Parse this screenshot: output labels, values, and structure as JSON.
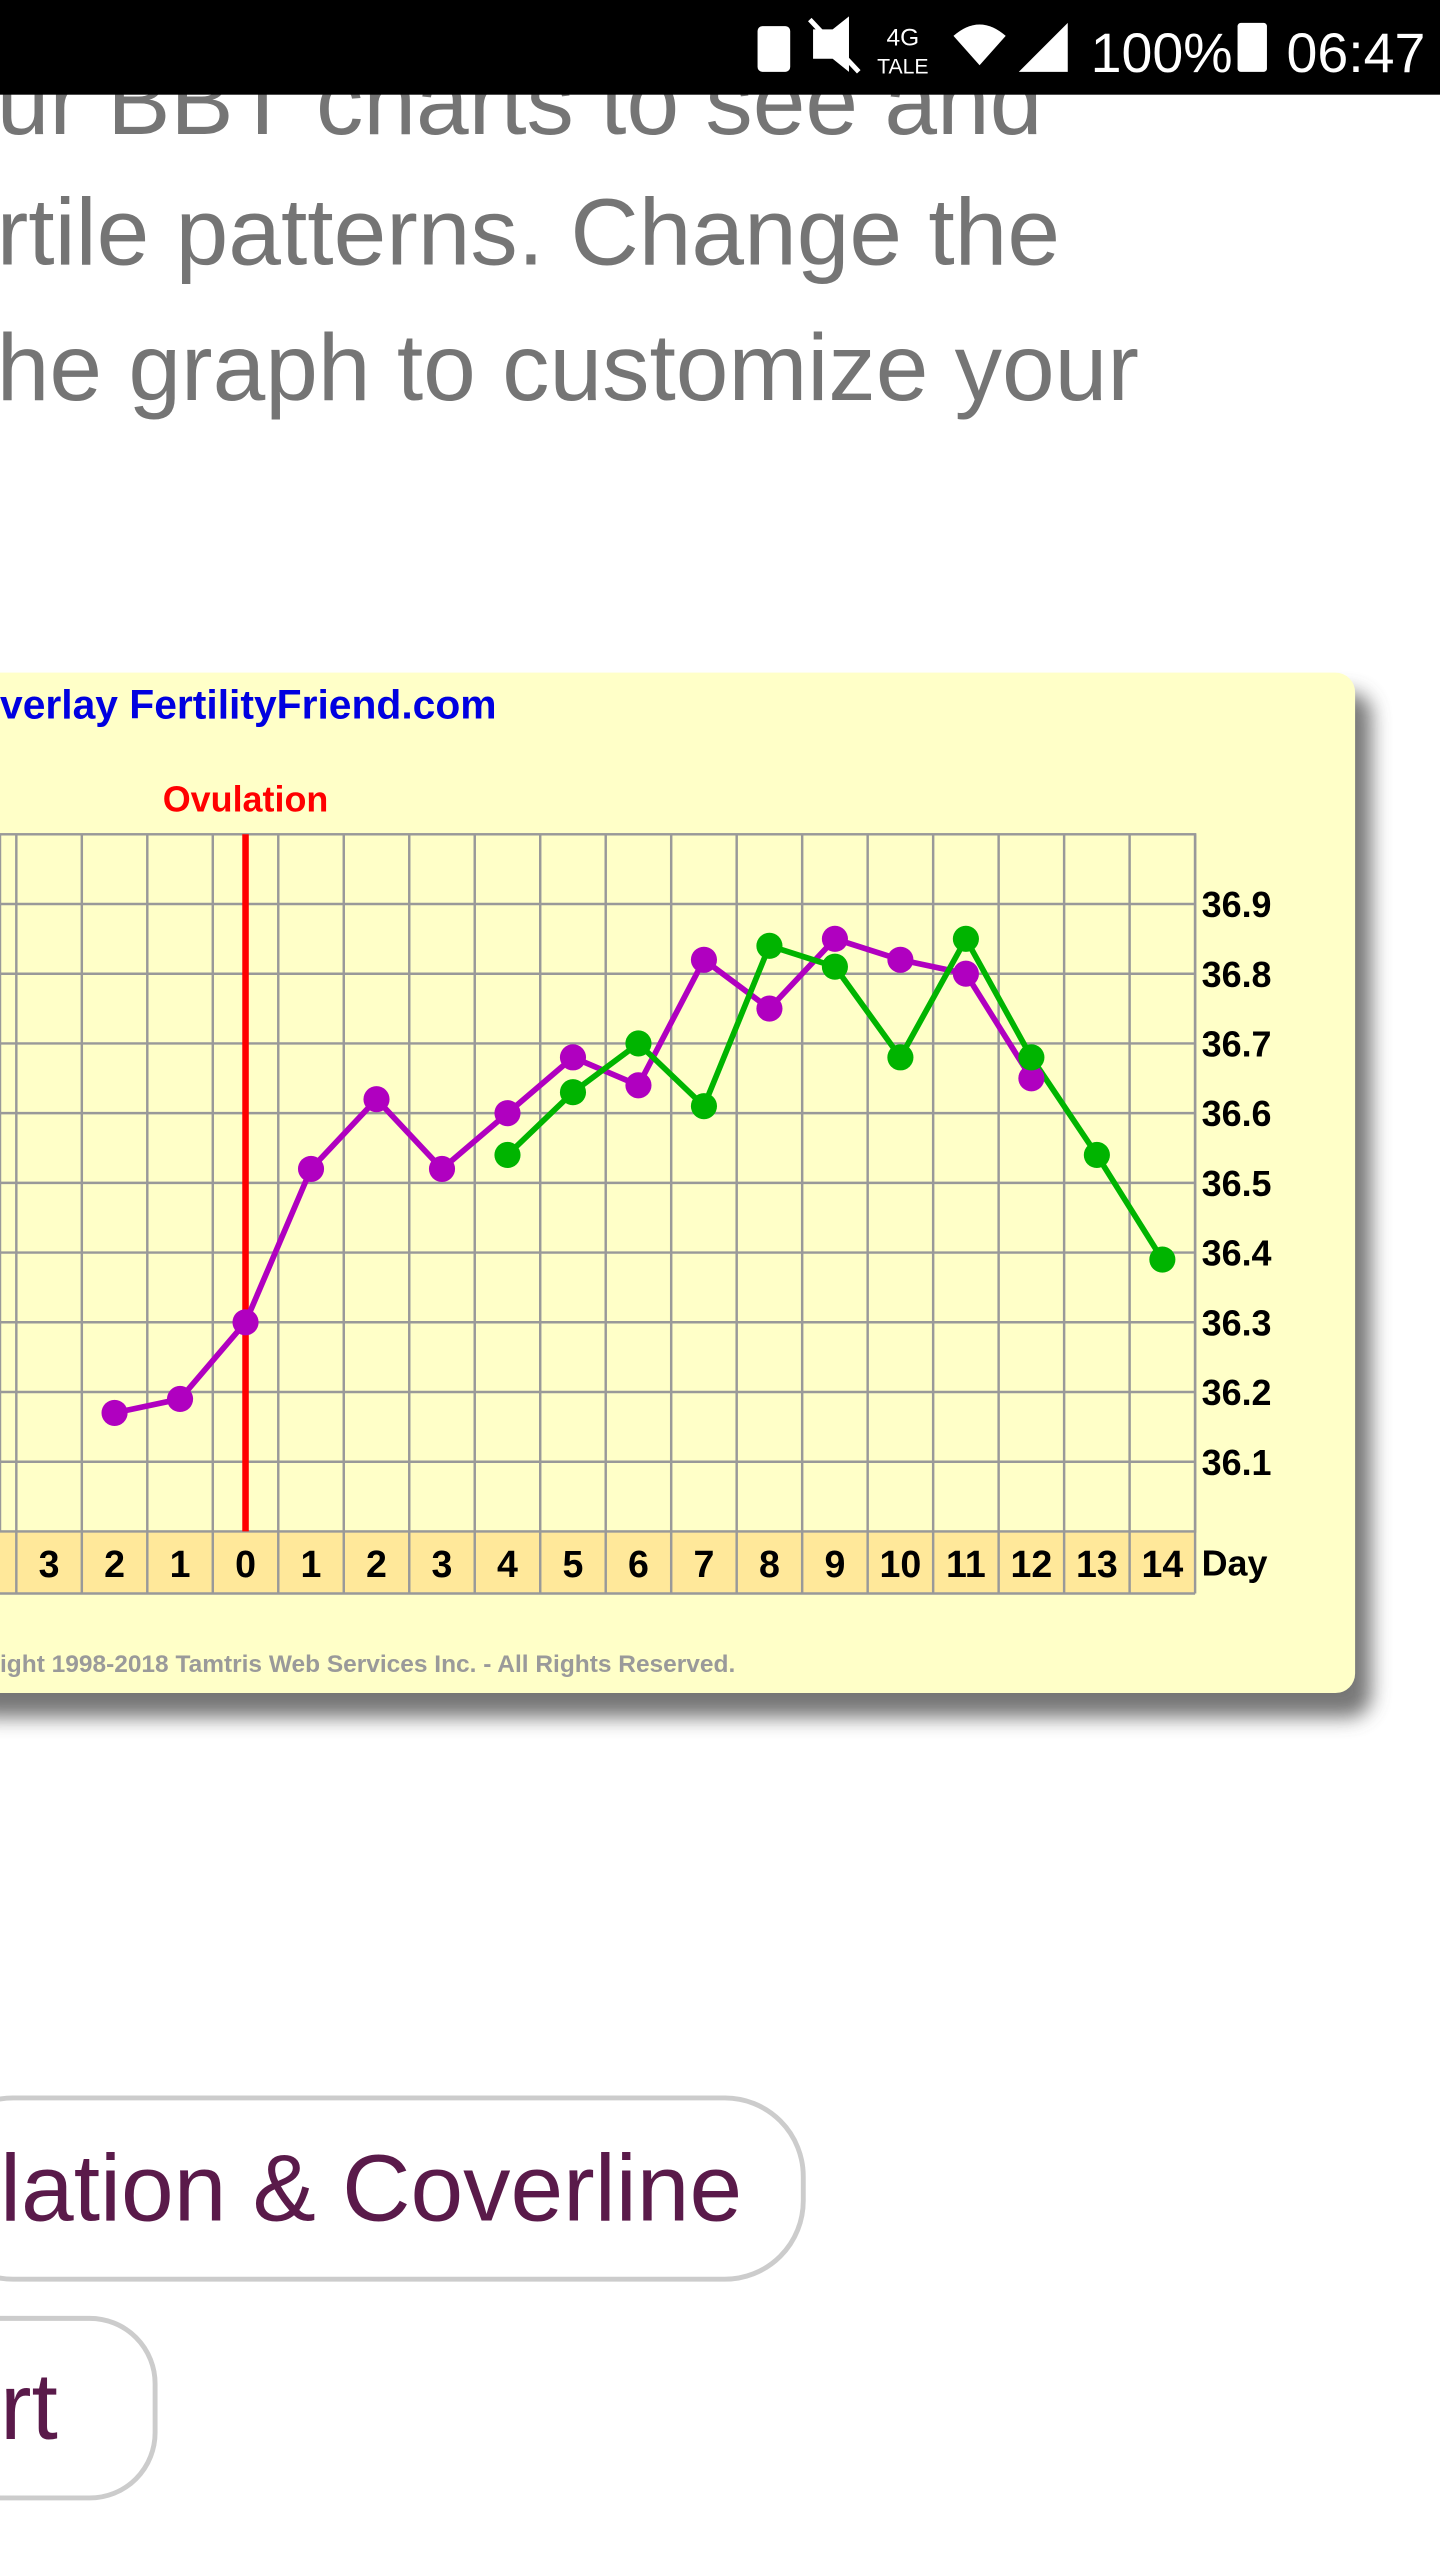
{
  "status_bar": {
    "network": "4G",
    "network_sub": "TALE",
    "battery": "100%",
    "time": "06:47"
  },
  "intro_text": {
    "lines": [
      "ur BBT charts to see and",
      "rtile patterns. Change the",
      "he graph to customize your"
    ]
  },
  "chart_data": {
    "type": "line",
    "title": "verlay FertilityFriend.com",
    "x_label": "Day",
    "footnote": "ight 1998-2018 Tamtris Web Services Inc. - All Rights Reserved.",
    "marker": {
      "label": "Ovulation",
      "at": 3,
      "color": "#ff0000"
    },
    "categories": [
      "3",
      "2",
      "1",
      "0",
      "1",
      "2",
      "3",
      "4",
      "5",
      "6",
      "7",
      "8",
      "9",
      "10",
      "11",
      "12",
      "13",
      "14"
    ],
    "series": [
      {
        "color": "#b000c0",
        "values": [
          null,
          36.17,
          36.19,
          36.3,
          36.52,
          36.62,
          36.52,
          36.6,
          36.68,
          36.64,
          36.82,
          36.75,
          36.85,
          36.82,
          36.8,
          36.65,
          null,
          null
        ]
      },
      {
        "color": "#00b400",
        "values": [
          null,
          null,
          null,
          null,
          null,
          null,
          null,
          36.54,
          36.63,
          36.7,
          36.61,
          36.84,
          36.81,
          36.68,
          36.85,
          36.68,
          36.54,
          36.39
        ]
      }
    ],
    "ylim": [
      36.0,
      37.0
    ],
    "yticks": [
      36.1,
      36.2,
      36.3,
      36.4,
      36.5,
      36.6,
      36.7,
      36.8,
      36.9
    ],
    "grid": true
  },
  "buttons": [
    "lation & Coverline",
    "rt"
  ]
}
